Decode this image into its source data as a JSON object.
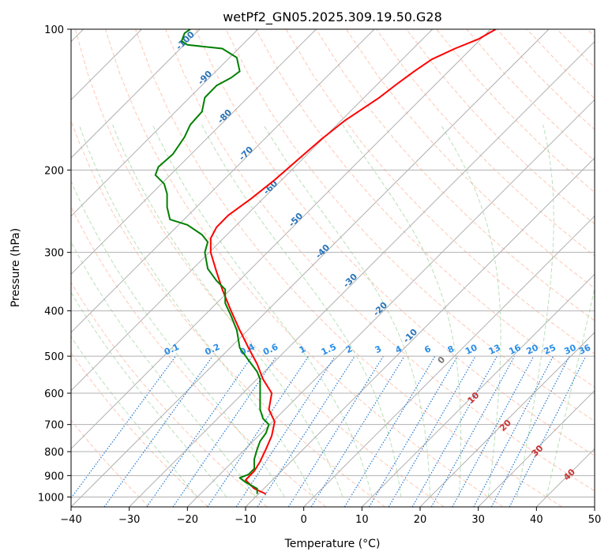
{
  "chart_data": {
    "type": "line",
    "title": "wetPf2_GN05.2025.309.19.50.G28",
    "xlabel": "Temperature (°C)",
    "ylabel": "Pressure (hPa)",
    "xlim": [
      -40,
      50
    ],
    "ylim": [
      1050,
      100
    ],
    "y_scale": "log",
    "x_ticks": [
      "−40",
      "−30",
      "−20",
      "−10",
      "0",
      "10",
      "20",
      "30",
      "40",
      "50"
    ],
    "x_tick_values": [
      -40,
      -30,
      -20,
      -10,
      0,
      10,
      20,
      30,
      40,
      50
    ],
    "y_ticks": [
      "100",
      "200",
      "300",
      "400",
      "500",
      "600",
      "700",
      "800",
      "900",
      "1000"
    ],
    "y_tick_values": [
      100,
      200,
      300,
      400,
      500,
      600,
      700,
      800,
      900,
      1000
    ],
    "grid": true,
    "colors": {
      "temperature": "#ff0000",
      "dewpoint": "#008000",
      "isotherm": "#b0b0b0",
      "dry_adiabat": "#ff9977",
      "moist_adiabat": "#88cc88",
      "mixing_ratio": "#1f77d4",
      "wet_label": "#2a74b8"
    },
    "series": [
      {
        "role": "temperature",
        "points": [
          [
            -6.5,
            985
          ],
          [
            -8.5,
            960
          ],
          [
            -10.0,
            920
          ],
          [
            -8.5,
            880
          ],
          [
            -7.5,
            840
          ],
          [
            -6.5,
            790
          ],
          [
            -5.5,
            740
          ],
          [
            -5.0,
            690
          ],
          [
            -6.0,
            650
          ],
          [
            -5.5,
            600
          ],
          [
            -7.0,
            560
          ],
          [
            -8.0,
            520
          ],
          [
            -9.5,
            480
          ],
          [
            -11.0,
            440
          ],
          [
            -12.5,
            400
          ],
          [
            -14.0,
            360
          ],
          [
            -15.0,
            330
          ],
          [
            -16.0,
            300
          ],
          [
            -16.0,
            280
          ],
          [
            -15.0,
            265
          ],
          [
            -13.0,
            250
          ],
          [
            -9.0,
            230
          ],
          [
            -5.0,
            210
          ],
          [
            -1.0,
            190
          ],
          [
            3.0,
            172
          ],
          [
            7.0,
            157
          ],
          [
            13.0,
            140
          ],
          [
            16.0,
            131
          ],
          [
            19.0,
            123
          ],
          [
            22.0,
            116
          ],
          [
            26.0,
            110
          ],
          [
            30.0,
            105
          ],
          [
            33.0,
            100
          ]
        ]
      },
      {
        "role": "dewpoint",
        "points": [
          [
            -8.0,
            985
          ],
          [
            -8.0,
            960
          ],
          [
            -10.0,
            930
          ],
          [
            -11.0,
            910
          ],
          [
            -9.5,
            895
          ],
          [
            -8.5,
            870
          ],
          [
            -8.5,
            830
          ],
          [
            -8.0,
            790
          ],
          [
            -7.5,
            760
          ],
          [
            -6.5,
            730
          ],
          [
            -6.0,
            700
          ],
          [
            -7.0,
            680
          ],
          [
            -7.5,
            650
          ],
          [
            -7.5,
            600
          ],
          [
            -7.5,
            560
          ],
          [
            -8.0,
            540
          ],
          [
            -9.5,
            510
          ],
          [
            -11.0,
            480
          ],
          [
            -11.5,
            440
          ],
          [
            -12.5,
            410
          ],
          [
            -13.5,
            385
          ],
          [
            -13.5,
            360
          ],
          [
            -15.0,
            345
          ],
          [
            -16.5,
            325
          ],
          [
            -17.0,
            300
          ],
          [
            -16.5,
            285
          ],
          [
            -17.5,
            275
          ],
          [
            -20.0,
            262
          ],
          [
            -23.0,
            255
          ],
          [
            -23.5,
            240
          ],
          [
            -23.5,
            225
          ],
          [
            -24.0,
            214
          ],
          [
            -25.5,
            205
          ],
          [
            -25.0,
            197
          ],
          [
            -22.5,
            185
          ],
          [
            -20.5,
            170
          ],
          [
            -19.5,
            160
          ],
          [
            -17.5,
            150
          ],
          [
            -17.0,
            140
          ],
          [
            -15.0,
            132
          ],
          [
            -12.5,
            127
          ],
          [
            -11.0,
            123
          ],
          [
            -11.5,
            115
          ],
          [
            -14.0,
            110
          ],
          [
            -20.0,
            108
          ],
          [
            -21.0,
            106
          ],
          [
            -20.5,
            102
          ],
          [
            -19.5,
            100
          ]
        ]
      }
    ],
    "wet_labels": [
      "-100",
      "-90",
      "-80",
      "-70",
      "-60",
      "-50",
      "-40",
      "-30",
      "-20",
      "-10"
    ],
    "wet_label_values": [
      -100,
      -90,
      -80,
      -70,
      -60,
      -50,
      -40,
      -30,
      -20,
      -10
    ],
    "mixing_ratio_labels": [
      "0.1",
      "0.2",
      "0.4",
      "0.6",
      "1",
      "1.5",
      "2",
      "3",
      "4",
      "6",
      "8",
      "10",
      "13",
      "16",
      "20",
      "25",
      "30",
      "36"
    ],
    "mixing_ratio_label_temps": [
      -22.5,
      -15.5,
      -9.5,
      -5.5,
      0.0,
      4.5,
      8.0,
      13.0,
      16.5,
      21.5,
      25.5,
      29.0,
      33.0,
      36.5,
      39.5,
      42.5,
      46.0,
      48.5
    ],
    "freezing_labels": [
      "0",
      "10",
      "20",
      "30",
      "40"
    ],
    "freezing_label_points": [
      [
        24.0,
        515
      ],
      [
        29.5,
        620
      ],
      [
        35.0,
        710
      ],
      [
        40.5,
        805
      ],
      [
        46.0,
        905
      ]
    ]
  }
}
